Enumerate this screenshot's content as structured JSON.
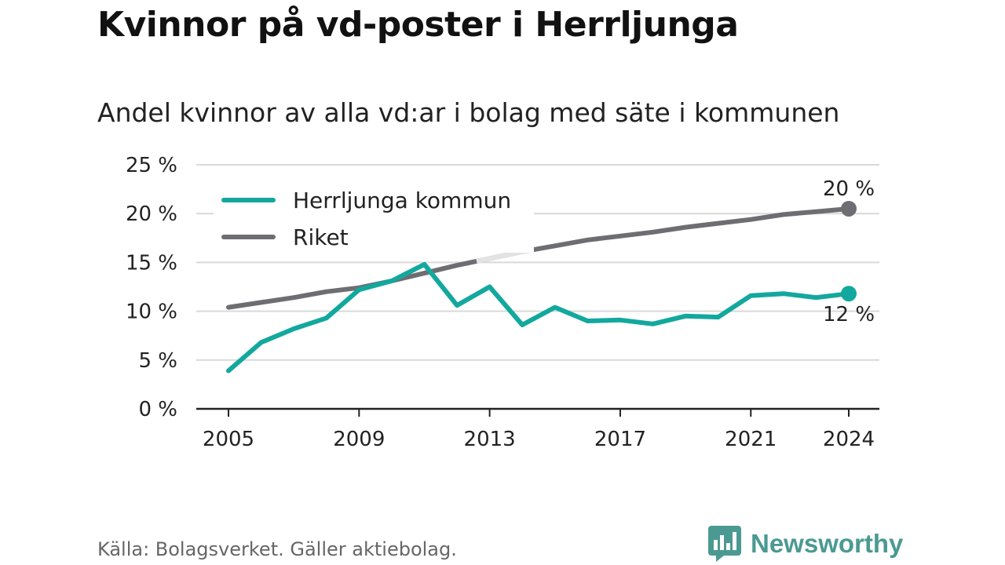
{
  "header": {
    "title": "Kvinnor på vd-poster i Herrljunga",
    "subtitle": "Andel kvinnor av alla vd:ar i bolag med säte i kommunen"
  },
  "footer": {
    "source": "Källa: Bolagsverket. Gäller aktiebolag.",
    "logo_text": "Newsworthy",
    "logo_icon": "bar-chart-speech-bubble-icon"
  },
  "colors": {
    "herrljunga": "#13a89e",
    "riket": "#6e6d72",
    "riket_highlight": "#e3e3e5",
    "grid": "#d9d9d9",
    "axis": "#222222",
    "brand": "#4a9a92"
  },
  "chart_data": {
    "type": "line",
    "title": "Kvinnor på vd-poster i Herrljunga",
    "subtitle": "Andel kvinnor av alla vd:ar i bolag med säte i kommunen",
    "xlabel": "",
    "ylabel": "",
    "x": [
      2005,
      2006,
      2007,
      2008,
      2009,
      2010,
      2011,
      2012,
      2013,
      2014,
      2015,
      2016,
      2017,
      2018,
      2019,
      2020,
      2021,
      2022,
      2023,
      2024
    ],
    "xticks": [
      2005,
      2009,
      2013,
      2017,
      2021,
      2024
    ],
    "xlim": [
      2005,
      2024
    ],
    "ylim": [
      0,
      25
    ],
    "yticks": [
      0,
      5,
      10,
      15,
      20,
      25
    ],
    "ytick_labels": [
      "0 %",
      "5 %",
      "10 %",
      "15 %",
      "20 %",
      "25 %"
    ],
    "grid": true,
    "legend_position": "top-left",
    "series": [
      {
        "name": "Herrljunga kommun",
        "color": "#13a89e",
        "values": [
          3.9,
          6.8,
          8.2,
          9.3,
          12.2,
          13.1,
          14.8,
          10.6,
          12.5,
          8.6,
          10.4,
          9.0,
          9.1,
          8.7,
          9.5,
          9.4,
          11.6,
          11.8,
          11.4,
          11.8
        ],
        "end_label": "12 %"
      },
      {
        "name": "Riket",
        "color": "#6e6d72",
        "values": [
          10.4,
          10.9,
          11.4,
          12.0,
          12.4,
          13.1,
          13.9,
          14.7,
          15.4,
          16.1,
          16.7,
          17.3,
          17.7,
          18.1,
          18.6,
          19.0,
          19.4,
          19.9,
          20.2,
          20.5
        ],
        "end_label": "20 %"
      }
    ]
  }
}
